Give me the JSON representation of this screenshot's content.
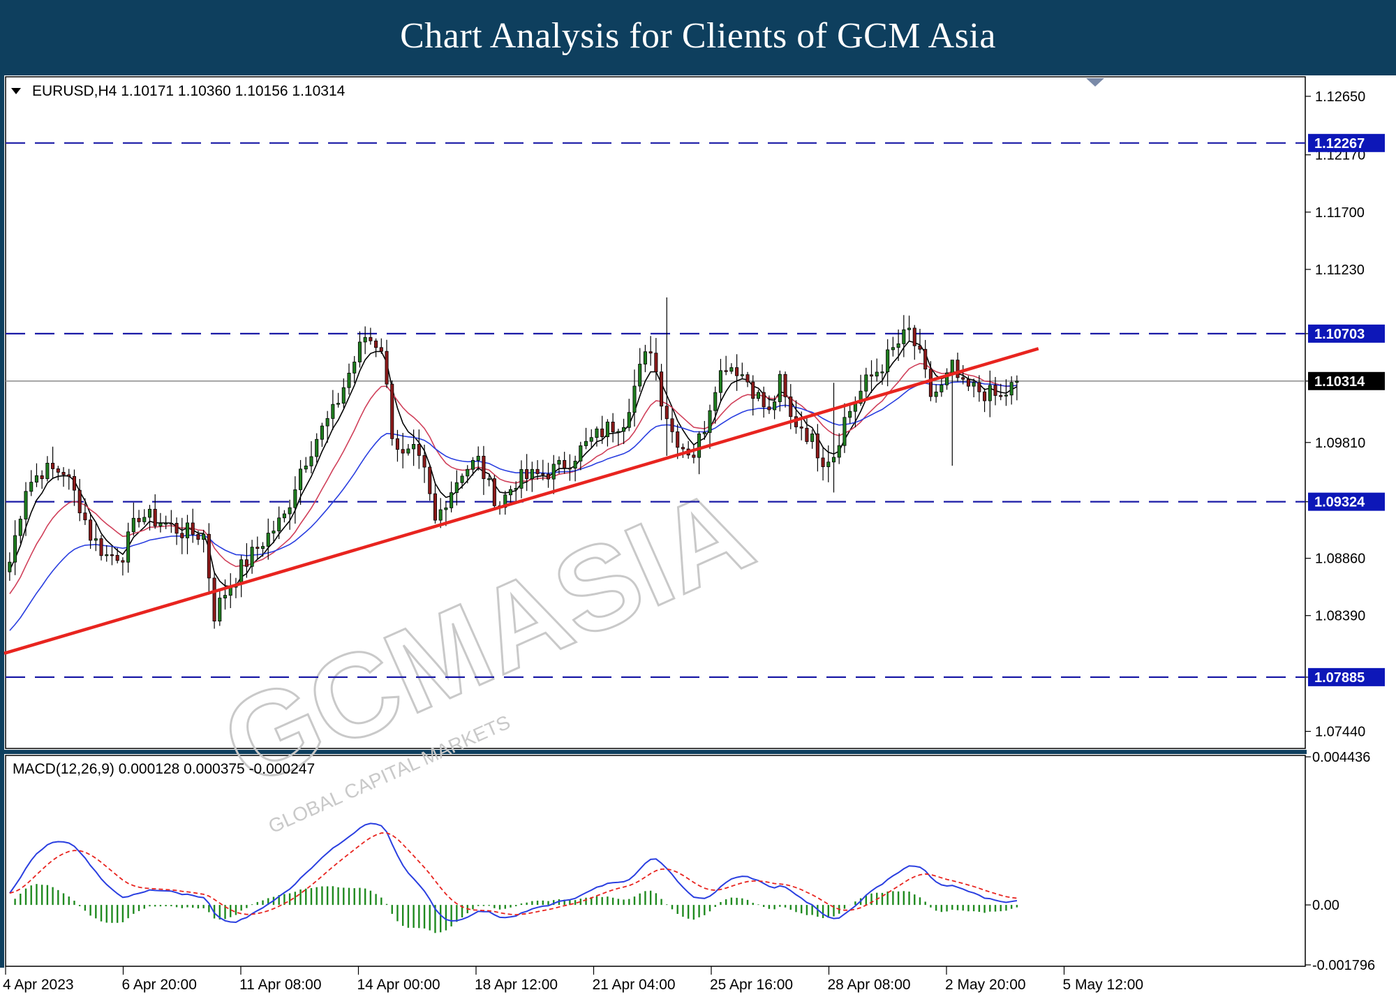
{
  "header": {
    "title": "Chart Analysis for Clients of GCM Asia"
  },
  "main_chart": {
    "symbol_line": "EURUSD,H4  1.10171 1.10360 1.10156 1.10314",
    "y_ticks": [
      "1.12650",
      "1.12170",
      "1.11700",
      "1.11230",
      "1.10703",
      "1.10314",
      "1.09810",
      "1.09324",
      "1.08860",
      "1.08390",
      "1.07885",
      "1.07440"
    ],
    "price_labels": [
      {
        "text": "1.12267",
        "kind": "level"
      },
      {
        "text": "1.10703",
        "kind": "level"
      },
      {
        "text": "1.10314",
        "kind": "current"
      },
      {
        "text": "1.09324",
        "kind": "level"
      },
      {
        "text": "1.07885",
        "kind": "level"
      }
    ]
  },
  "macd_panel": {
    "label": "MACD(12,26,9) 0.000128 0.000375 -0.000247",
    "y_ticks": [
      "0.004436",
      "0.00",
      "-0.001796"
    ]
  },
  "x_axis": {
    "labels": [
      "4 Apr 2023",
      "6 Apr 20:00",
      "11 Apr 08:00",
      "14 Apr 00:00",
      "18 Apr 12:00",
      "21 Apr 04:00",
      "25 Apr 16:00",
      "28 Apr 08:00",
      "2 May 20:00",
      "5 May 12:00"
    ]
  },
  "watermark": {
    "text": "GCMASIA",
    "subtext": "GLOBAL CAPITAL MARKETS"
  },
  "colors": {
    "header_bg": "#0e3f5e",
    "bull": "#1f7d1f",
    "bear": "#8b1a1a",
    "trendline": "#e8241f",
    "level_line": "#1a1aa6",
    "label_bg": "#0d17b8",
    "ma_fast": "#000000",
    "ma_mid": "#d0405a",
    "ma_slow": "#2a3fe0",
    "macd_line": "#2a3fe0",
    "signal_line": "#e8241f",
    "histogram": "#1f8a1f"
  },
  "chart_data": {
    "type": "candlestick",
    "symbol": "EURUSD",
    "timeframe": "H4",
    "ohlc_last": {
      "open": 1.10171,
      "high": 1.1036,
      "low": 1.10156,
      "close": 1.10314
    },
    "y_range": [
      1.073,
      1.1281
    ],
    "x_range_dates": [
      "2023-04-04",
      "2023-05-05 12:00"
    ],
    "horizontal_levels": [
      1.12267,
      1.10703,
      1.09324,
      1.07885
    ],
    "current_price": 1.10314,
    "trendline": {
      "start": {
        "bar": 0,
        "price": 1.0808
      },
      "end": {
        "bar": 191,
        "price": 1.1058
      }
    },
    "price_path": [
      [
        0,
        1.0883
      ],
      [
        3,
        1.0945
      ],
      [
        6,
        1.0958
      ],
      [
        10,
        1.0958
      ],
      [
        13,
        1.093
      ],
      [
        15,
        1.0905
      ],
      [
        18,
        1.0888
      ],
      [
        21,
        1.089
      ],
      [
        24,
        1.0922
      ],
      [
        28,
        1.0916
      ],
      [
        32,
        1.0908
      ],
      [
        36,
        1.0905
      ],
      [
        38,
        1.084
      ],
      [
        40,
        1.0858
      ],
      [
        43,
        1.0878
      ],
      [
        47,
        1.09
      ],
      [
        51,
        1.092
      ],
      [
        54,
        1.096
      ],
      [
        57,
        1.0985
      ],
      [
        60,
        1.1005
      ],
      [
        63,
        1.1038
      ],
      [
        66,
        1.1068
      ],
      [
        69,
        1.106
      ],
      [
        71,
        1.099
      ],
      [
        73,
        1.0968
      ],
      [
        75,
        1.0972
      ],
      [
        77,
        1.0955
      ],
      [
        79,
        1.0915
      ],
      [
        81,
        1.0935
      ],
      [
        84,
        1.0958
      ],
      [
        87,
        1.0966
      ],
      [
        89,
        1.0944
      ],
      [
        91,
        1.093
      ],
      [
        94,
        1.095
      ],
      [
        98,
        1.0954
      ],
      [
        102,
        1.096
      ],
      [
        106,
        1.0975
      ],
      [
        110,
        1.099
      ],
      [
        114,
        1.1
      ],
      [
        117,
        1.104
      ],
      [
        119,
        1.106
      ],
      [
        121,
        1.1018
      ],
      [
        123,
        1.099
      ],
      [
        125,
        1.0978
      ],
      [
        127,
        1.0972
      ],
      [
        129,
        1.0995
      ],
      [
        131,
        1.103
      ],
      [
        133,
        1.1046
      ],
      [
        135,
        1.1042
      ],
      [
        137,
        1.1032
      ],
      [
        139,
        1.1018
      ],
      [
        141,
        1.1004
      ],
      [
        143,
        1.103
      ],
      [
        145,
        1.1
      ],
      [
        147,
        1.0995
      ],
      [
        149,
        1.0982
      ],
      [
        151,
        1.0968
      ],
      [
        153,
        1.0972
      ],
      [
        155,
        1.1
      ],
      [
        157,
        1.1015
      ],
      [
        159,
        1.103
      ],
      [
        162,
        1.1045
      ],
      [
        165,
        1.1062
      ],
      [
        167,
        1.1072
      ],
      [
        169,
        1.105
      ],
      [
        171,
        1.102
      ],
      [
        173,
        1.1025
      ],
      [
        175,
        1.1042
      ],
      [
        177,
        1.1025
      ],
      [
        179,
        1.1025
      ],
      [
        181,
        1.1022
      ],
      [
        184,
        1.1017
      ],
      [
        187,
        1.1031
      ]
    ],
    "spikes": [
      {
        "bar": 122,
        "high": 1.11,
        "low": 1.097
      },
      {
        "bar": 153,
        "high": 1.103,
        "low": 1.094
      },
      {
        "bar": 175,
        "high": 1.104,
        "low": 1.0962
      }
    ],
    "macd": {
      "params": [
        12,
        26,
        9
      ],
      "macd_last": 0.000128,
      "signal_last": 0.000375,
      "histogram_last": -0.000247,
      "y_range": [
        -0.001796,
        0.004436
      ]
    }
  }
}
